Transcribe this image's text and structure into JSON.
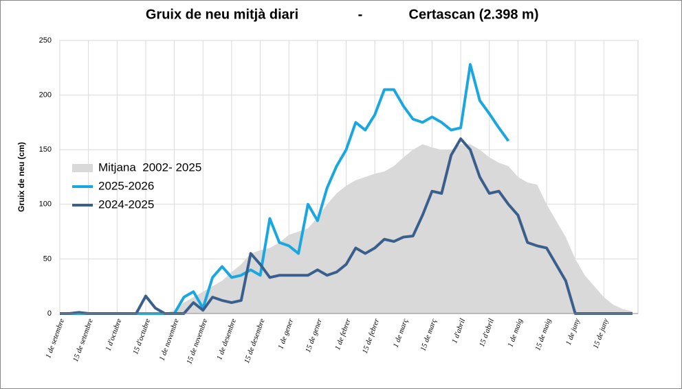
{
  "chart_data": {
    "type": "line",
    "title": [
      "Gruix de neu mitjà diari",
      "-",
      "Certascan (2.398 m)"
    ],
    "y_label": "Gruix de neu (cm)",
    "categories": [
      "1 de setembre",
      null,
      null,
      "15 de setembre",
      null,
      null,
      "1 d'octubre",
      null,
      null,
      "15 d'octubre",
      null,
      null,
      "1 de novembre",
      null,
      null,
      "15 de novembre",
      null,
      null,
      "1 de desembre",
      null,
      null,
      "15 de desembre",
      null,
      null,
      "1 de gener",
      null,
      null,
      "15 de gener",
      null,
      null,
      "1 de febrer",
      null,
      null,
      "15 de febrer",
      null,
      null,
      "1 de març",
      null,
      null,
      "15 de març",
      null,
      null,
      "1 d'abril",
      null,
      null,
      "15 d'abril",
      null,
      null,
      "1 de maig",
      null,
      null,
      "15 de maig",
      null,
      null,
      "1 de juny",
      null,
      null,
      "15 de juny",
      null,
      null,
      null
    ],
    "series": [
      {
        "name": "Mitjana  2002- 2025",
        "kind": "area",
        "color": "#d9d9d9",
        "values": [
          0,
          0,
          0,
          0,
          0,
          0,
          0,
          0,
          0,
          0,
          0,
          0,
          3,
          10,
          15,
          20,
          25,
          30,
          38,
          45,
          55,
          58,
          60,
          65,
          72,
          75,
          78,
          88,
          100,
          110,
          117,
          122,
          125,
          128,
          130,
          135,
          143,
          150,
          155,
          152,
          150,
          150,
          155,
          155,
          150,
          143,
          138,
          135,
          125,
          120,
          118,
          100,
          85,
          70,
          50,
          35,
          25,
          15,
          8,
          4,
          2
        ]
      },
      {
        "name": "2025-2026",
        "color": "#1aa7e0",
        "values": [
          0,
          0,
          0,
          0,
          0,
          0,
          0,
          0,
          0,
          0,
          0,
          0,
          0,
          15,
          20,
          5,
          33,
          43,
          33,
          35,
          40,
          35,
          87,
          65,
          62,
          55,
          100,
          85,
          115,
          135,
          150,
          175,
          168,
          182,
          205,
          205,
          190,
          178,
          175,
          180,
          175,
          168,
          170,
          228,
          195,
          183,
          170,
          158,
          null,
          null,
          null,
          null,
          null,
          null,
          null,
          null,
          null,
          null,
          null,
          null,
          null
        ]
      },
      {
        "name": "2024-2025",
        "color": "#3a5f8c",
        "values": [
          0,
          0,
          1,
          0,
          0,
          0,
          0,
          0,
          0,
          16,
          5,
          0,
          0,
          0,
          10,
          3,
          15,
          12,
          10,
          12,
          55,
          45,
          33,
          35,
          35,
          35,
          35,
          40,
          35,
          38,
          45,
          60,
          55,
          60,
          68,
          66,
          70,
          71,
          90,
          112,
          110,
          145,
          160,
          150,
          125,
          110,
          112,
          100,
          90,
          65,
          62,
          60,
          45,
          30,
          0,
          0,
          0,
          0,
          0,
          0,
          0
        ]
      }
    ],
    "ylim": [
      0,
      250
    ],
    "yticks": [
      0,
      50,
      100,
      150,
      200,
      250
    ],
    "grid": true,
    "legend": "left"
  }
}
